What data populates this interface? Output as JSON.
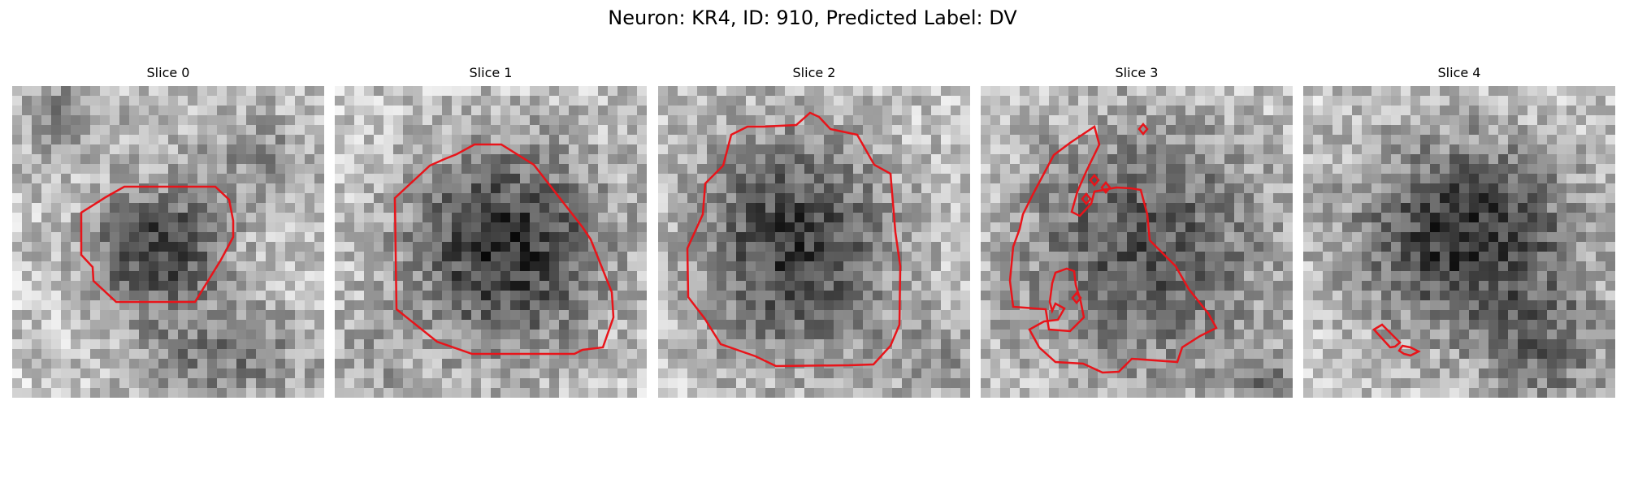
{
  "figure": {
    "title": "Neuron: KR4, ID: 910, Predicted Label: DV"
  },
  "panels": [
    {
      "title": "Slice 0"
    },
    {
      "title": "Slice 1"
    },
    {
      "title": "Slice 2"
    },
    {
      "title": "Slice 3"
    },
    {
      "title": "Slice 4"
    }
  ],
  "colors": {
    "contour": "#e8141a"
  }
}
